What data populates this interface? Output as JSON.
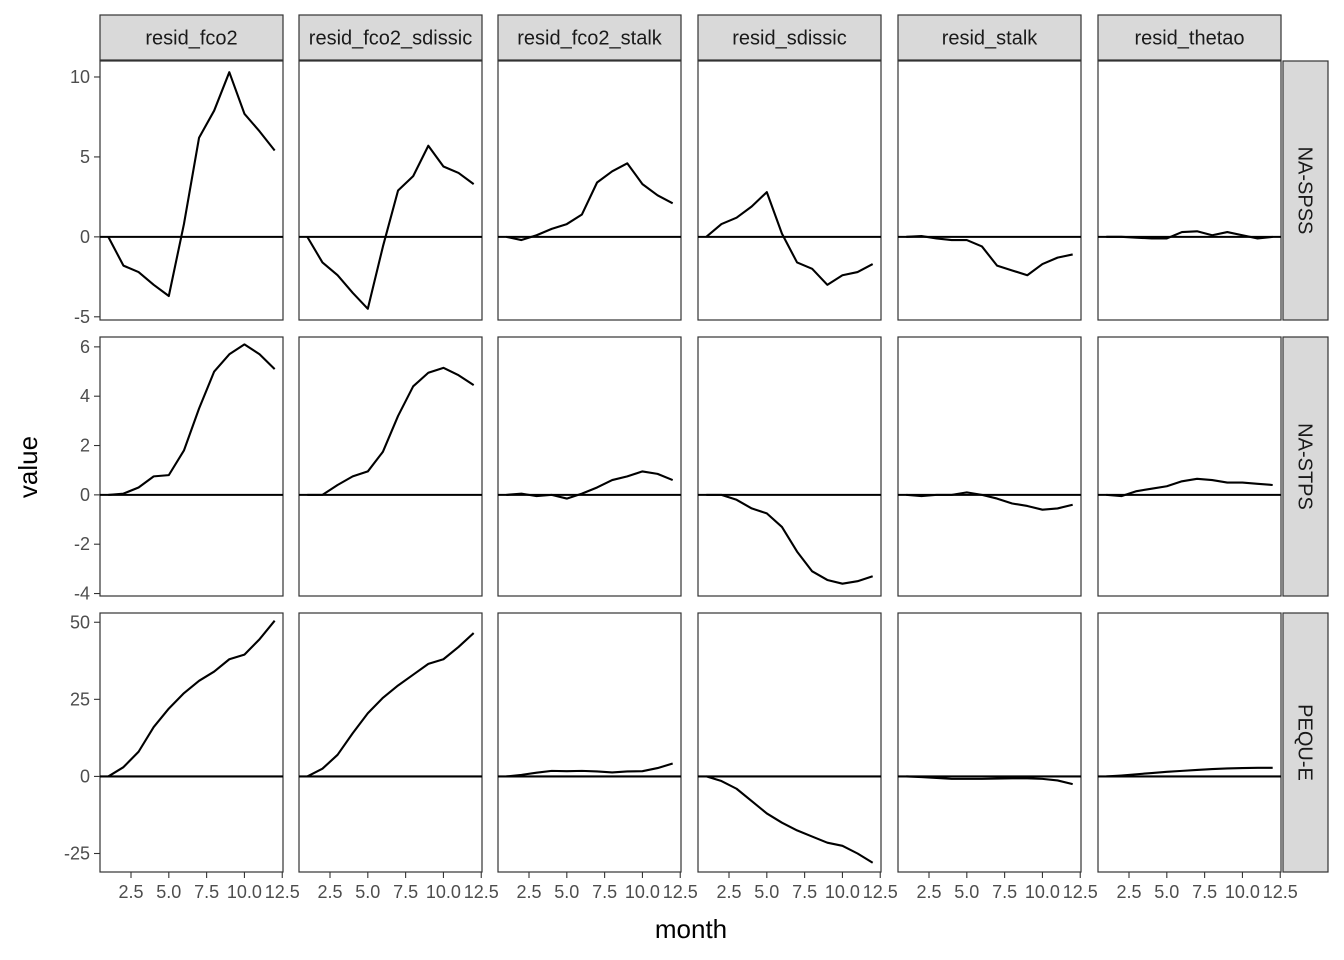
{
  "chart_data": {
    "type": "line",
    "xlabel": "month",
    "ylabel": "value",
    "hline": 0,
    "x": [
      1,
      2,
      3,
      4,
      5,
      6,
      7,
      8,
      9,
      10,
      11,
      12
    ],
    "xlim": [
      0.45,
      12.55
    ],
    "x_ticks": [
      2.5,
      5.0,
      7.5,
      10.0,
      12.5
    ],
    "x_tick_labels": [
      "2.5",
      "5.0",
      "7.5",
      "10.0",
      "12.5"
    ],
    "columns": [
      "resid_fco2",
      "resid_fco2_sdissic",
      "resid_fco2_stalk",
      "resid_sdissic",
      "resid_stalk",
      "resid_thetao"
    ],
    "rows": [
      {
        "name": "NA-SPSS",
        "ylim": [
          -5.2,
          11
        ],
        "y_ticks": [
          -5,
          0,
          5,
          10
        ],
        "y_tick_labels": [
          "-5",
          "0",
          "5",
          "10"
        ],
        "series": [
          {
            "name": "resid_fco2",
            "values": [
              0,
              -1.8,
              -2.2,
              -3.0,
              -3.7,
              0.8,
              6.2,
              7.9,
              10.3,
              7.7,
              6.6,
              5.4
            ]
          },
          {
            "name": "resid_fco2_sdissic",
            "values": [
              0,
              -1.6,
              -2.4,
              -3.5,
              -4.5,
              -0.6,
              2.9,
              3.8,
              5.7,
              4.4,
              4.0,
              3.3
            ]
          },
          {
            "name": "resid_fco2_stalk",
            "values": [
              0,
              -0.2,
              0.1,
              0.5,
              0.8,
              1.4,
              3.4,
              4.1,
              4.6,
              3.3,
              2.6,
              2.1
            ]
          },
          {
            "name": "resid_sdissic",
            "values": [
              0,
              0.8,
              1.2,
              1.9,
              2.8,
              0.2,
              -1.6,
              -2.0,
              -3.0,
              -2.4,
              -2.2,
              -1.7
            ]
          },
          {
            "name": "resid_stalk",
            "values": [
              0,
              0.05,
              -0.1,
              -0.2,
              -0.2,
              -0.6,
              -1.8,
              -2.1,
              -2.4,
              -1.7,
              -1.3,
              -1.1
            ]
          },
          {
            "name": "resid_thetao",
            "values": [
              0,
              0,
              -0.05,
              -0.1,
              -0.1,
              0.3,
              0.35,
              0.1,
              0.3,
              0.1,
              -0.1,
              0
            ]
          }
        ]
      },
      {
        "name": "NA-STPS",
        "ylim": [
          -4.1,
          6.4
        ],
        "y_ticks": [
          -4,
          -2,
          0,
          2,
          4,
          6
        ],
        "y_tick_labels": [
          "-4",
          "-2",
          "0",
          "2",
          "4",
          "6"
        ],
        "series": [
          {
            "name": "resid_fco2",
            "values": [
              0,
              0.05,
              0.3,
              0.75,
              0.8,
              1.8,
              3.5,
              5.0,
              5.7,
              6.1,
              5.7,
              5.1
            ]
          },
          {
            "name": "resid_fco2_sdissic",
            "values": [
              0,
              0,
              0.4,
              0.75,
              0.95,
              1.75,
              3.2,
              4.4,
              4.95,
              5.15,
              4.85,
              4.45
            ]
          },
          {
            "name": "resid_fco2_stalk",
            "values": [
              0,
              0.05,
              -0.05,
              0,
              -0.15,
              0.05,
              0.3,
              0.6,
              0.75,
              0.95,
              0.85,
              0.6
            ]
          },
          {
            "name": "resid_sdissic",
            "values": [
              0,
              0,
              -0.2,
              -0.55,
              -0.75,
              -1.3,
              -2.3,
              -3.1,
              -3.45,
              -3.6,
              -3.5,
              -3.3
            ]
          },
          {
            "name": "resid_stalk",
            "values": [
              0,
              -0.05,
              0,
              0,
              0.1,
              0,
              -0.15,
              -0.35,
              -0.45,
              -0.6,
              -0.55,
              -0.4
            ]
          },
          {
            "name": "resid_thetao",
            "values": [
              0,
              -0.05,
              0.15,
              0.25,
              0.35,
              0.55,
              0.65,
              0.6,
              0.5,
              0.5,
              0.45,
              0.4
            ]
          }
        ]
      },
      {
        "name": "PEQU-E",
        "ylim": [
          -31,
          53
        ],
        "y_ticks": [
          -25,
          0,
          25,
          50
        ],
        "y_tick_labels": [
          "-25",
          "0",
          "25",
          "50"
        ],
        "series": [
          {
            "name": "resid_fco2",
            "values": [
              0,
              3,
              8,
              16,
              22,
              27,
              31,
              34,
              38,
              39.5,
              44.5,
              50.5
            ]
          },
          {
            "name": "resid_fco2_sdissic",
            "values": [
              0,
              2.5,
              7,
              14,
              20.5,
              25.5,
              29.5,
              33,
              36.5,
              38,
              42,
              46.5
            ]
          },
          {
            "name": "resid_fco2_stalk",
            "values": [
              0,
              0.5,
              1.2,
              1.8,
              1.7,
              1.8,
              1.6,
              1.3,
              1.6,
              1.7,
              2.7,
              4.2
            ]
          },
          {
            "name": "resid_sdissic",
            "values": [
              0,
              -1.5,
              -4,
              -8,
              -12,
              -15,
              -17.5,
              -19.5,
              -21.5,
              -22.5,
              -25,
              -28
            ]
          },
          {
            "name": "resid_stalk",
            "values": [
              0,
              -0.2,
              -0.5,
              -0.8,
              -0.8,
              -0.8,
              -0.7,
              -0.6,
              -0.6,
              -0.8,
              -1.3,
              -2.5
            ]
          },
          {
            "name": "resid_thetao",
            "values": [
              0,
              0.3,
              0.7,
              1.1,
              1.5,
              1.8,
              2.1,
              2.4,
              2.6,
              2.7,
              2.8,
              2.8
            ]
          }
        ]
      }
    ]
  }
}
